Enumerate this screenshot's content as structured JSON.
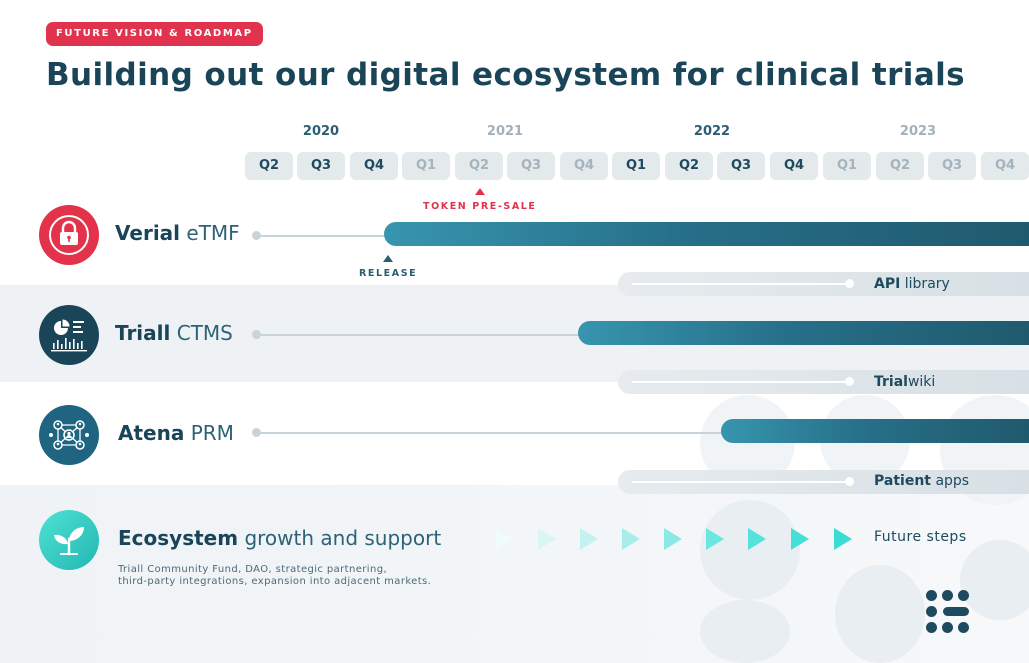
{
  "header": {
    "badge": "FUTURE VISION & ROADMAP",
    "title": "Building out our digital ecosystem for clinical trials"
  },
  "timeline": {
    "years": [
      {
        "label": "2020",
        "style": "dark"
      },
      {
        "label": "2021",
        "style": "light"
      },
      {
        "label": "2022",
        "style": "dark"
      },
      {
        "label": "2023",
        "style": "light"
      }
    ],
    "quarters": [
      {
        "label": "Q2",
        "style": "dark"
      },
      {
        "label": "Q3",
        "style": "dark"
      },
      {
        "label": "Q4",
        "style": "dark"
      },
      {
        "label": "Q1",
        "style": "light"
      },
      {
        "label": "Q2",
        "style": "light"
      },
      {
        "label": "Q3",
        "style": "light"
      },
      {
        "label": "Q4",
        "style": "light"
      },
      {
        "label": "Q1",
        "style": "dark"
      },
      {
        "label": "Q2",
        "style": "dark"
      },
      {
        "label": "Q3",
        "style": "dark"
      },
      {
        "label": "Q4",
        "style": "dark"
      },
      {
        "label": "Q1",
        "style": "light"
      },
      {
        "label": "Q2",
        "style": "light"
      },
      {
        "label": "Q3",
        "style": "light"
      },
      {
        "label": "Q4",
        "style": "light"
      }
    ],
    "markers": {
      "token_presale": "TOKEN PRE-SALE",
      "release": "RELEASE"
    }
  },
  "products": [
    {
      "bold": "Verial",
      "light": "eTMF",
      "icon": "lock-icon",
      "bar_start_quarter": "2020 Q4"
    },
    {
      "bold": "Triall",
      "light": "CTMS",
      "icon": "dashboard-chart-icon",
      "bar_start_quarter": "2021 Q3"
    },
    {
      "bold": "Atena",
      "light": "PRM",
      "icon": "people-network-icon",
      "bar_start_quarter": "2022 Q2"
    },
    {
      "bold": "Ecosystem",
      "light": "growth and support",
      "icon": "seedling-icon"
    }
  ],
  "sub_items": [
    {
      "bold": "API",
      "light": "library"
    },
    {
      "bold": "Trial",
      "light": "wiki"
    },
    {
      "bold": "Patient",
      "light": "apps"
    }
  ],
  "ecosystem": {
    "description_line1": "Triall Community Fund, DAO, strategic partnering,",
    "description_line2": "third-party integrations, expansion into adjacent markets.",
    "future_label": "Future steps"
  },
  "colors": {
    "accent_red": "#e1334d",
    "navy": "#1a4559",
    "teal_bar": "#2b7b93",
    "cyan_arrow": "#3ee0d9"
  }
}
